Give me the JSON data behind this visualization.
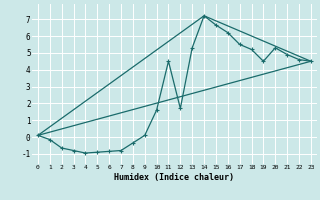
{
  "xlabel": "Humidex (Indice chaleur)",
  "bg_color": "#cce8e8",
  "grid_color": "#ffffff",
  "line_color": "#1a6b6b",
  "xlim": [
    -0.5,
    23.5
  ],
  "ylim": [
    -1.6,
    7.9
  ],
  "xticks": [
    0,
    1,
    2,
    3,
    4,
    5,
    6,
    7,
    8,
    9,
    10,
    11,
    12,
    13,
    14,
    15,
    16,
    17,
    18,
    19,
    20,
    21,
    22,
    23
  ],
  "yticks": [
    -1,
    0,
    1,
    2,
    3,
    4,
    5,
    6,
    7
  ],
  "line1_x": [
    0,
    1,
    2,
    3,
    4,
    5,
    6,
    7,
    8,
    9,
    10,
    11,
    12,
    13,
    14,
    15,
    16,
    17,
    18,
    19,
    20,
    21,
    22,
    23
  ],
  "line1_y": [
    0.1,
    -0.15,
    -0.65,
    -0.8,
    -0.95,
    -0.9,
    -0.85,
    -0.8,
    -0.35,
    0.1,
    1.6,
    4.5,
    1.7,
    5.3,
    7.2,
    6.65,
    6.2,
    5.5,
    5.2,
    4.5,
    5.3,
    4.9,
    4.6,
    4.5
  ],
  "line2_x": [
    0,
    23
  ],
  "line2_y": [
    0.1,
    4.5
  ],
  "line3_x": [
    0,
    14,
    23
  ],
  "line3_y": [
    0.1,
    7.2,
    4.5
  ]
}
